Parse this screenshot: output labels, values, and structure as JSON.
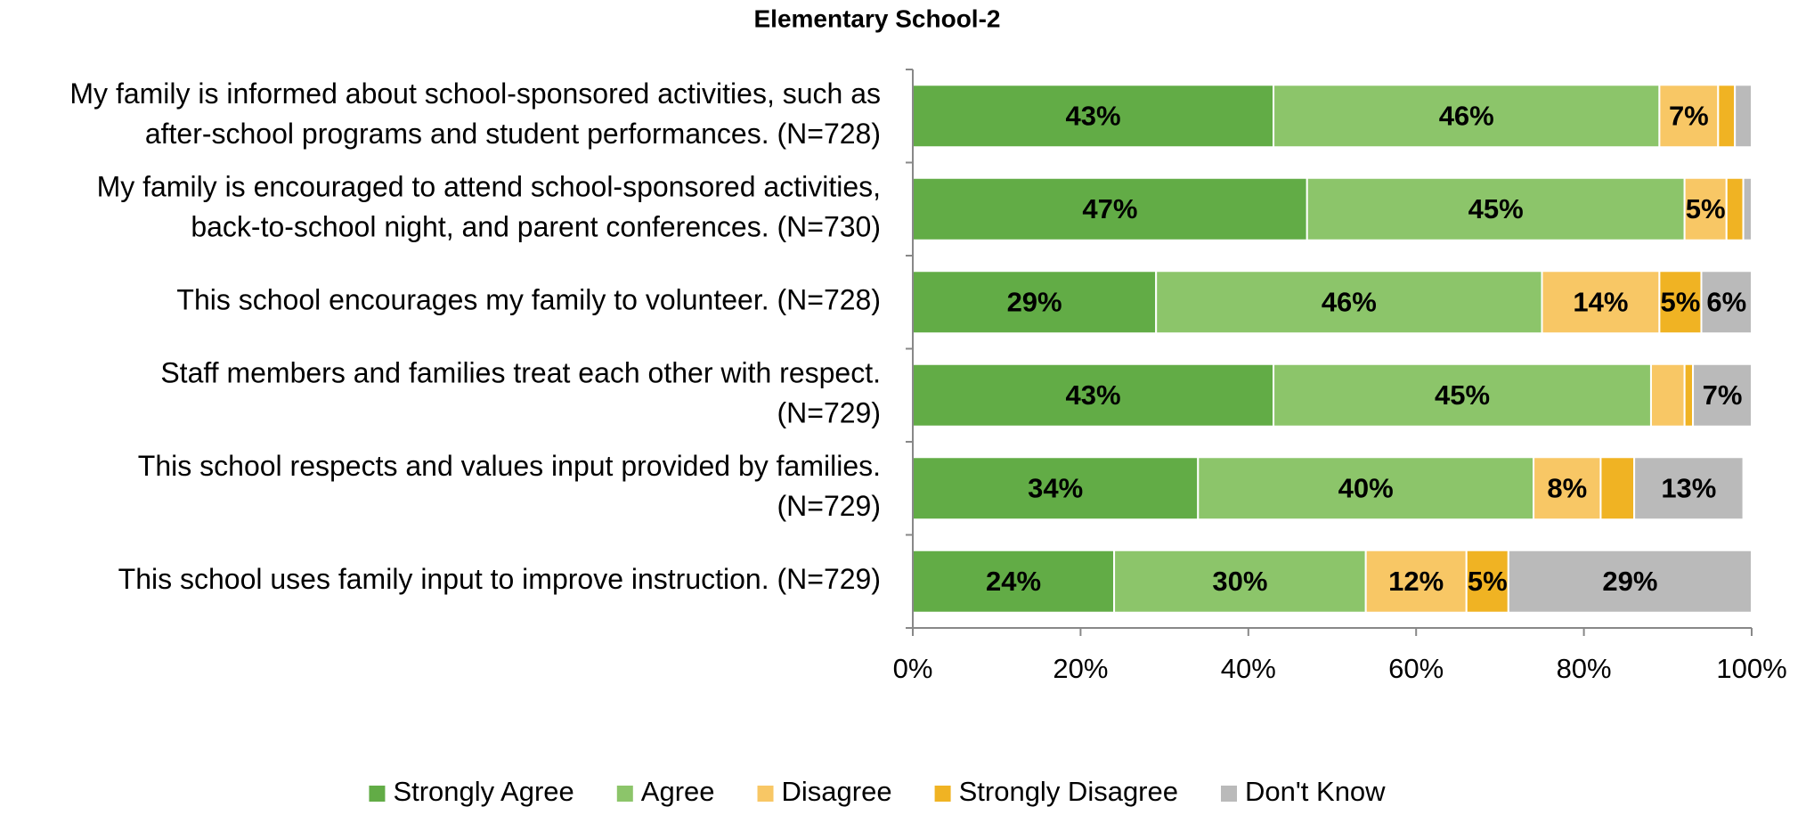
{
  "chart_data": {
    "type": "stacked-barh",
    "title": "Elementary School-2",
    "categories": [
      [
        "My family is informed about school-sponsored activities, such as",
        "after-school programs and student performances. (N=728)"
      ],
      [
        "My family is encouraged to attend school-sponsored activities,",
        "back-to-school night, and parent conferences. (N=730)"
      ],
      [
        "This school encourages my family to volunteer. (N=728)"
      ],
      [
        "Staff members and families treat each other with respect.",
        "(N=729)"
      ],
      [
        "This school respects and values input provided by families.",
        "(N=729)"
      ],
      [
        "This school uses family input to improve instruction. (N=729)"
      ]
    ],
    "series": [
      {
        "name": "Strongly Agree",
        "color": "#62ac46",
        "values": [
          43,
          47,
          29,
          43,
          34,
          24
        ],
        "value_labels": [
          "43%",
          "47%",
          "29%",
          "43%",
          "34%",
          "24%"
        ]
      },
      {
        "name": "Agree",
        "color": "#8cc56a",
        "values": [
          46,
          45,
          46,
          45,
          40,
          30
        ],
        "value_labels": [
          "46%",
          "45%",
          "46%",
          "45%",
          "40%",
          "30%"
        ]
      },
      {
        "name": "Disagree",
        "color": "#f8c765",
        "values": [
          7,
          5,
          14,
          4,
          8,
          12
        ],
        "value_labels": [
          "7%",
          "5%",
          "14%",
          null,
          "8%",
          "12%"
        ]
      },
      {
        "name": "Strongly Disagree",
        "color": "#f0b323",
        "values": [
          2,
          2,
          5,
          1,
          4,
          5
        ],
        "value_labels": [
          null,
          null,
          "5%",
          null,
          null,
          "5%"
        ]
      },
      {
        "name": "Don't Know",
        "color": "#bababa",
        "values": [
          2,
          1,
          6,
          7,
          13,
          29
        ],
        "value_labels": [
          null,
          null,
          "6%",
          "7%",
          "13%",
          "29%"
        ]
      }
    ],
    "xlim": [
      0,
      100
    ],
    "xticks": [
      {
        "value": 0,
        "label": "0%"
      },
      {
        "value": 20,
        "label": "20%"
      },
      {
        "value": 40,
        "label": "40%"
      },
      {
        "value": 60,
        "label": "60%"
      },
      {
        "value": 80,
        "label": "80%"
      },
      {
        "value": 100,
        "label": "100%"
      }
    ],
    "legend": "bottom"
  }
}
